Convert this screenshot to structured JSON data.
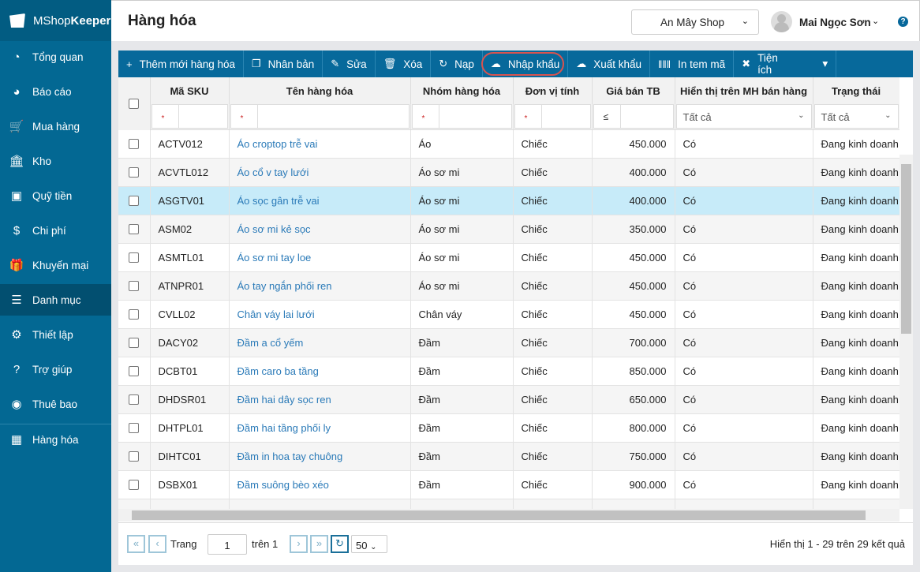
{
  "app": {
    "brand_light": "MShop",
    "brand_bold": "Keeper"
  },
  "sidebar": {
    "items": [
      {
        "label": "Tổng quan",
        "icon": "dashboard-icon",
        "glyph": "◔"
      },
      {
        "label": "Báo cáo",
        "icon": "pie-chart-icon",
        "glyph": "◕"
      },
      {
        "label": "Mua hàng",
        "icon": "cart-icon",
        "glyph": "🛒"
      },
      {
        "label": "Kho",
        "icon": "warehouse-icon",
        "glyph": "🏛"
      },
      {
        "label": "Quỹ tiền",
        "icon": "safe-icon",
        "glyph": "▣"
      },
      {
        "label": "Chi phí",
        "icon": "money-icon",
        "glyph": "$"
      },
      {
        "label": "Khuyến mại",
        "icon": "gift-icon",
        "glyph": "🎁"
      },
      {
        "label": "Danh mục",
        "icon": "list-icon",
        "glyph": "☰",
        "active": true
      },
      {
        "label": "Thiết lập",
        "icon": "gear-icon",
        "glyph": "⚙"
      },
      {
        "label": "Trợ giúp",
        "icon": "help-icon",
        "glyph": "?"
      },
      {
        "label": "Thuê bao",
        "icon": "user-icon",
        "glyph": "◉"
      },
      {
        "label": "Hàng hóa",
        "icon": "boxes-icon",
        "glyph": "▦"
      }
    ]
  },
  "header": {
    "title": "Hàng hóa",
    "shop": "An Mây Shop",
    "user": "Mai Ngọc Sơn",
    "help": "?"
  },
  "toolbar": [
    {
      "label": "Thêm mới hàng hóa",
      "icon": "plus-icon",
      "glyph": "+"
    },
    {
      "label": "Nhân bản",
      "icon": "copy-icon",
      "glyph": "❐"
    },
    {
      "label": "Sửa",
      "icon": "pencil-icon",
      "glyph": "✎"
    },
    {
      "label": "Xóa",
      "icon": "trash-icon",
      "glyph": "🗑"
    },
    {
      "label": "Nạp",
      "icon": "refresh-icon",
      "glyph": "↻"
    },
    {
      "label": "Nhập khẩu",
      "icon": "cloud-upload-icon",
      "glyph": "☁"
    },
    {
      "label": "Xuất khẩu",
      "icon": "cloud-download-icon",
      "glyph": "☁"
    },
    {
      "label": "In tem mã",
      "icon": "barcode-icon",
      "glyph": "‖‖‖"
    },
    {
      "label": "Tiện ích",
      "icon": "tools-icon",
      "glyph": "✖",
      "dropdown": "▾"
    }
  ],
  "table": {
    "columns": [
      "Mã SKU",
      "Tên hàng hóa",
      "Nhóm hàng hóa",
      "Đơn vị tính",
      "Giá bán TB",
      "Hiển thị trên MH bán hàng",
      "Trạng thái"
    ],
    "filters": {
      "text_op": "*",
      "num_op": "≤",
      "select_all": "Tất cả"
    },
    "rows": [
      [
        "ACTV012",
        "Áo croptop trễ vai",
        "Áo",
        "Chiếc",
        "450.000",
        "Có",
        "Đang kinh doanh"
      ],
      [
        "ACVTL012",
        "Áo cổ v tay lưới",
        "Áo sơ mi",
        "Chiếc",
        "400.000",
        "Có",
        "Đang kinh doanh"
      ],
      [
        "ASGTV01",
        "Áo sọc gân trễ vai",
        "Áo sơ mi",
        "Chiếc",
        "400.000",
        "Có",
        "Đang kinh doanh"
      ],
      [
        "ASM02",
        "Áo sơ mi kẻ sọc",
        "Áo sơ mi",
        "Chiếc",
        "350.000",
        "Có",
        "Đang kinh doanh"
      ],
      [
        "ASMTL01",
        "Áo sơ mi tay loe",
        "Áo sơ mi",
        "Chiếc",
        "450.000",
        "Có",
        "Đang kinh doanh"
      ],
      [
        "ATNPR01",
        "Áo tay ngắn phối ren",
        "Áo sơ mi",
        "Chiếc",
        "450.000",
        "Có",
        "Đang kinh doanh"
      ],
      [
        "CVLL02",
        "Chân váy lai lưới",
        "Chân váy",
        "Chiếc",
        "450.000",
        "Có",
        "Đang kinh doanh"
      ],
      [
        "DACY02",
        "Đầm a cổ yếm",
        "Đầm",
        "Chiếc",
        "700.000",
        "Có",
        "Đang kinh doanh"
      ],
      [
        "DCBT01",
        "Đầm caro ba tầng",
        "Đầm",
        "Chiếc",
        "850.000",
        "Có",
        "Đang kinh doanh"
      ],
      [
        "DHDSR01",
        "Đầm hai dây sọc ren",
        "Đầm",
        "Chiếc",
        "650.000",
        "Có",
        "Đang kinh doanh"
      ],
      [
        "DHTPL01",
        "Đầm hai tầng phối ly",
        "Đầm",
        "Chiếc",
        "800.000",
        "Có",
        "Đang kinh doanh"
      ],
      [
        "DIHTC01",
        "Đầm in hoa tay chuông",
        "Đầm",
        "Chiếc",
        "750.000",
        "Có",
        "Đang kinh doanh"
      ],
      [
        "DSBX01",
        "Đầm suông bèo xéo",
        "Đầm",
        "Chiếc",
        "900.000",
        "Có",
        "Đang kinh doanh"
      ]
    ],
    "selected_row": 2
  },
  "pager": {
    "first": "«",
    "prev": "‹",
    "page_label": "Trang",
    "page": "1",
    "of_label": "trên 1",
    "next": "›",
    "last": "»",
    "refresh": "↻",
    "page_size": "50",
    "summary": "Hiển thị 1 - 29 trên 29 kết quả"
  }
}
